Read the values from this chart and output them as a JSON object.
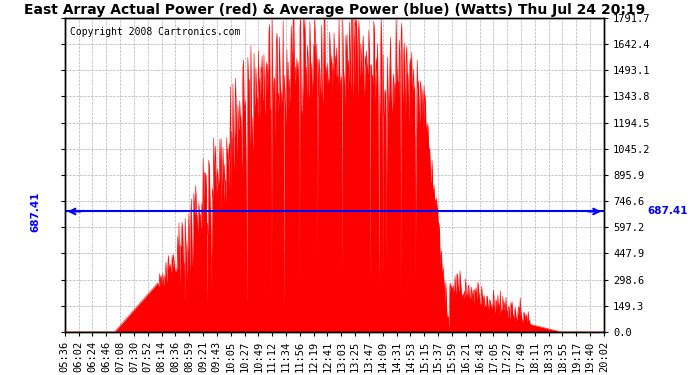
{
  "title": "East Array Actual Power (red) & Average Power (blue) (Watts) Thu Jul 24 20:19",
  "copyright": "Copyright 2008 Cartronics.com",
  "average_power": 687.41,
  "y_max": 1791.7,
  "y_ticks": [
    0.0,
    149.3,
    298.6,
    447.9,
    597.2,
    746.6,
    895.9,
    1045.2,
    1194.5,
    1343.8,
    1493.1,
    1642.4,
    1791.7
  ],
  "x_labels": [
    "05:36",
    "06:02",
    "06:24",
    "06:46",
    "07:08",
    "07:30",
    "07:52",
    "08:14",
    "08:36",
    "08:59",
    "09:21",
    "09:43",
    "10:05",
    "10:27",
    "10:49",
    "11:12",
    "11:34",
    "11:56",
    "12:19",
    "12:41",
    "13:03",
    "13:25",
    "13:47",
    "14:09",
    "14:31",
    "14:53",
    "15:15",
    "15:37",
    "15:59",
    "16:21",
    "16:43",
    "17:05",
    "17:27",
    "17:49",
    "18:11",
    "18:33",
    "18:55",
    "19:17",
    "19:40",
    "20:02"
  ],
  "background_color": "#ffffff",
  "fill_color": "#ff0000",
  "line_color": "#0000ff",
  "grid_color": "#b0b0b0",
  "title_fontsize": 10,
  "copyright_fontsize": 7,
  "tick_fontsize": 7.5
}
